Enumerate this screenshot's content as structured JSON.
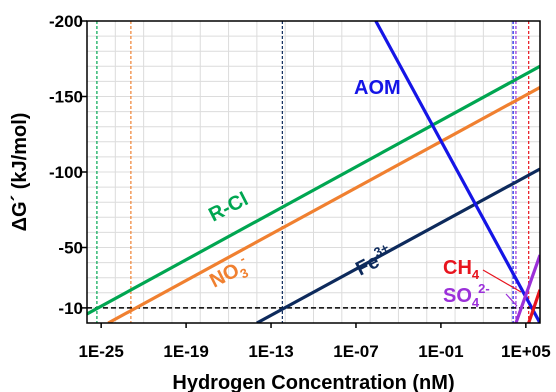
{
  "chart_data": {
    "type": "line",
    "xlabel": "Hydrogen Concentration (nM)",
    "ylabel": "ΔG´ (kJ/mol)",
    "x_scale": "log10",
    "x_unit_note": "x values are log10(hydrogen concentration, nM)",
    "xlim": [
      -26,
      6
    ],
    "ylim": [
      0,
      -200
    ],
    "y_inverted": true,
    "xticks": [
      -25,
      -19,
      -13,
      -7,
      -1,
      5
    ],
    "xtick_labels": [
      "1E-25",
      "1E-19",
      "1E-13",
      "1E-07",
      "1E-01",
      "1E+05"
    ],
    "yticks": [
      -200,
      -150,
      -100,
      -50,
      -10
    ],
    "ytick_labels": [
      "-200",
      "-150",
      "-100",
      "-50",
      "-10"
    ],
    "grid": true,
    "threshold": {
      "y": -10,
      "style": "dashed",
      "color": "#000000"
    },
    "series": [
      {
        "name": "R-Cl",
        "color": "#00a651",
        "x": [
          -26,
          6
        ],
        "y": [
          -6,
          -170
        ]
      },
      {
        "name": "NO3-",
        "color": "#f08030",
        "x": [
          -24.5,
          6
        ],
        "y": [
          0,
          -156
        ]
      },
      {
        "name": "Fe3+",
        "color": "#0d2a5c",
        "x": [
          -14,
          6
        ],
        "y": [
          0,
          -102
        ]
      },
      {
        "name": "AOM",
        "color": "#1515e6",
        "x": [
          -5.6,
          6
        ],
        "y": [
          -200,
          0
        ]
      },
      {
        "name": "CH4",
        "color": "#e8141e",
        "x": [
          5.2,
          6
        ],
        "y": [
          0,
          -22
        ]
      },
      {
        "name": "SO42-",
        "color": "#9b30d9",
        "x": [
          4.3,
          6
        ],
        "y": [
          0,
          -45
        ]
      }
    ],
    "vertical_markers": [
      {
        "series": "R-Cl",
        "x": -25.3,
        "color": "#00a651"
      },
      {
        "series": "NO3-",
        "x": -22.9,
        "color": "#f08030"
      },
      {
        "series": "Fe3+",
        "x": -12.2,
        "color": "#0d2a5c"
      },
      {
        "series": "AOM",
        "x": 4.1,
        "color": "#1515e6"
      },
      {
        "series": "SO42-",
        "x": 4.3,
        "color": "#9b30d9"
      },
      {
        "series": "CH4",
        "x": 5.2,
        "color": "#e8141e"
      }
    ],
    "annotations": [
      {
        "text": "R-Cl",
        "color": "#00a651"
      },
      {
        "text": "NO",
        "sub": "3",
        "sup": "-",
        "color": "#f08030"
      },
      {
        "text": "Fe",
        "sup": "3+",
        "color": "#0d2a5c"
      },
      {
        "text": "AOM",
        "color": "#1515e6"
      },
      {
        "text": "CH",
        "sub": "4",
        "color": "#e8141e"
      },
      {
        "text": "SO",
        "sub": "4",
        "sup": "2-",
        "color": "#9b30d9"
      }
    ]
  }
}
